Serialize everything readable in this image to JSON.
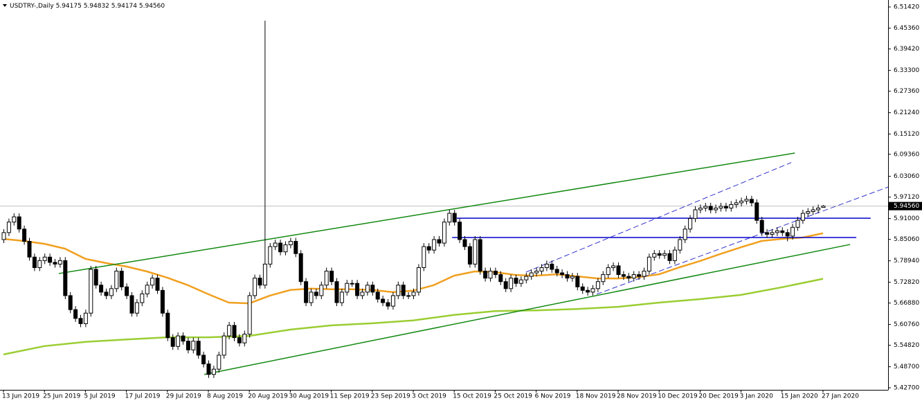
{
  "chart_data": {
    "type": "candlestick",
    "header": {
      "symbol": "USDTRY-,Daily",
      "prices": [
        "5.94175",
        "5.94832",
        "5.94174",
        "5.94560"
      ]
    },
    "ylim": [
      5.421,
      6.534
    ],
    "yticks": [
      {
        "value": 6.5142,
        "label": "6.51420"
      },
      {
        "value": 6.4536,
        "label": "6.45360"
      },
      {
        "value": 6.3942,
        "label": "6.39420"
      },
      {
        "value": 6.333,
        "label": "6.33300"
      },
      {
        "value": 6.2736,
        "label": "6.27360"
      },
      {
        "value": 6.2124,
        "label": "6.21240"
      },
      {
        "value": 6.1512,
        "label": "6.15120"
      },
      {
        "value": 6.0936,
        "label": "6.09360"
      },
      {
        "value": 6.0306,
        "label": "6.03060"
      },
      {
        "value": 5.9712,
        "label": "5.97120"
      },
      {
        "value": 5.91,
        "label": "5.91000"
      },
      {
        "value": 5.8506,
        "label": "5.85060"
      },
      {
        "value": 5.7894,
        "label": "5.78940"
      },
      {
        "value": 5.7282,
        "label": "5.72820"
      },
      {
        "value": 5.6688,
        "label": "5.66880"
      },
      {
        "value": 5.6076,
        "label": "5.60760"
      },
      {
        "value": 5.5482,
        "label": "5.54820"
      },
      {
        "value": 5.487,
        "label": "5.48700"
      },
      {
        "value": 5.427,
        "label": "5.42700"
      }
    ],
    "current_price": {
      "value": 5.9456,
      "label": "5.94560"
    },
    "bull_color": "#ffffff",
    "bear_color": "#000000",
    "outline_color": "#000000",
    "categories": [
      "13 Jun 2019",
      null,
      null,
      null,
      null,
      null,
      null,
      null,
      "25 Jun 2019",
      null,
      null,
      null,
      null,
      null,
      null,
      null,
      "5 Jul 2019",
      null,
      null,
      null,
      null,
      null,
      null,
      null,
      "17 Jul 2019",
      null,
      null,
      null,
      null,
      null,
      null,
      null,
      "29 Jul 2019",
      null,
      null,
      null,
      null,
      null,
      null,
      null,
      "8 Aug 2019",
      null,
      null,
      null,
      null,
      null,
      null,
      null,
      "20 Aug 2019",
      null,
      null,
      null,
      null,
      null,
      null,
      null,
      "30 Aug 2019",
      null,
      null,
      null,
      null,
      null,
      null,
      null,
      "11 Sep 2019",
      null,
      null,
      null,
      null,
      null,
      null,
      null,
      "23 Sep 2019",
      null,
      null,
      null,
      null,
      null,
      null,
      null,
      "3 Oct 2019",
      null,
      null,
      null,
      null,
      null,
      null,
      null,
      "15 Oct 2019",
      null,
      null,
      null,
      null,
      null,
      null,
      null,
      "25 Oct 2019",
      null,
      null,
      null,
      null,
      null,
      null,
      null,
      "6 Nov 2019",
      null,
      null,
      null,
      null,
      null,
      null,
      null,
      "18 Nov 2019",
      null,
      null,
      null,
      null,
      null,
      null,
      null,
      "28 Nov 2019",
      null,
      null,
      null,
      null,
      null,
      null,
      null,
      "10 Dec 2019",
      null,
      null,
      null,
      null,
      null,
      null,
      null,
      "20 Dec 2019",
      null,
      null,
      null,
      null,
      null,
      null,
      null,
      "3 Jan 2020",
      null,
      null,
      null,
      null,
      null,
      null,
      null,
      "15 Jan 2020",
      null,
      null,
      null,
      null,
      null,
      null,
      null,
      "27 Jan 2020"
    ],
    "candles": [
      [
        5.85,
        5.88,
        5.84,
        5.87
      ],
      [
        5.87,
        5.91,
        5.86,
        5.9
      ],
      [
        5.9,
        5.925,
        5.89,
        5.915
      ],
      [
        5.915,
        5.925,
        5.87,
        5.88
      ],
      [
        5.88,
        5.89,
        5.835,
        5.845
      ],
      [
        5.845,
        5.855,
        5.79,
        5.8
      ],
      [
        5.8,
        5.81,
        5.76,
        5.77
      ],
      [
        5.77,
        5.8,
        5.76,
        5.79
      ],
      [
        5.79,
        5.81,
        5.78,
        5.8
      ],
      [
        5.8,
        5.81,
        5.775,
        5.785
      ],
      [
        5.785,
        5.795,
        5.77,
        5.78
      ],
      [
        5.78,
        5.8,
        5.77,
        5.79
      ],
      [
        5.79,
        5.8,
        5.68,
        5.69
      ],
      [
        5.69,
        5.7,
        5.64,
        5.65
      ],
      [
        5.65,
        5.66,
        5.615,
        5.625
      ],
      [
        5.625,
        5.635,
        5.6,
        5.61
      ],
      [
        5.61,
        5.65,
        5.6,
        5.64
      ],
      [
        5.64,
        5.775,
        5.63,
        5.765
      ],
      [
        5.765,
        5.775,
        5.71,
        5.72
      ],
      [
        5.72,
        5.73,
        5.69,
        5.7
      ],
      [
        5.7,
        5.71,
        5.68,
        5.69
      ],
      [
        5.69,
        5.72,
        5.68,
        5.71
      ],
      [
        5.71,
        5.77,
        5.7,
        5.76
      ],
      [
        5.76,
        5.77,
        5.705,
        5.715
      ],
      [
        5.715,
        5.725,
        5.68,
        5.69
      ],
      [
        5.69,
        5.7,
        5.63,
        5.64
      ],
      [
        5.64,
        5.68,
        5.63,
        5.67
      ],
      [
        5.67,
        5.705,
        5.66,
        5.695
      ],
      [
        5.695,
        5.73,
        5.685,
        5.72
      ],
      [
        5.72,
        5.75,
        5.71,
        5.74
      ],
      [
        5.74,
        5.75,
        5.695,
        5.705
      ],
      [
        5.705,
        5.715,
        5.63,
        5.64
      ],
      [
        5.64,
        5.65,
        5.56,
        5.57
      ],
      [
        5.57,
        5.58,
        5.535,
        5.545
      ],
      [
        5.545,
        5.585,
        5.535,
        5.575
      ],
      [
        5.575,
        5.585,
        5.55,
        5.56
      ],
      [
        5.56,
        5.57,
        5.525,
        5.535
      ],
      [
        5.535,
        5.57,
        5.525,
        5.56
      ],
      [
        5.56,
        5.57,
        5.51,
        5.52
      ],
      [
        5.52,
        5.53,
        5.485,
        5.495
      ],
      [
        5.495,
        5.505,
        5.455,
        5.465
      ],
      [
        5.465,
        5.49,
        5.455,
        5.48
      ],
      [
        5.48,
        5.53,
        5.47,
        5.52
      ],
      [
        5.52,
        5.585,
        5.51,
        5.575
      ],
      [
        5.575,
        5.615,
        5.565,
        5.605
      ],
      [
        5.605,
        5.615,
        5.56,
        5.57
      ],
      [
        5.57,
        5.58,
        5.545,
        5.555
      ],
      [
        5.555,
        5.59,
        5.545,
        5.58
      ],
      [
        5.58,
        5.7,
        5.57,
        5.69
      ],
      [
        5.69,
        5.75,
        5.68,
        5.74
      ],
      [
        5.74,
        5.75,
        5.71,
        5.72
      ],
      [
        5.72,
        6.475,
        5.71,
        5.78
      ],
      [
        5.78,
        5.84,
        5.77,
        5.83
      ],
      [
        5.83,
        5.85,
        5.82,
        5.84
      ],
      [
        5.84,
        5.85,
        5.805,
        5.815
      ],
      [
        5.815,
        5.845,
        5.805,
        5.835
      ],
      [
        5.835,
        5.855,
        5.825,
        5.845
      ],
      [
        5.845,
        5.855,
        5.8,
        5.81
      ],
      [
        5.81,
        5.82,
        5.72,
        5.73
      ],
      [
        5.73,
        5.74,
        5.66,
        5.67
      ],
      [
        5.67,
        5.71,
        5.66,
        5.7
      ],
      [
        5.7,
        5.71,
        5.68,
        5.69
      ],
      [
        5.69,
        5.73,
        5.68,
        5.72
      ],
      [
        5.72,
        5.77,
        5.71,
        5.76
      ],
      [
        5.76,
        5.77,
        5.72,
        5.73
      ],
      [
        5.73,
        5.74,
        5.66,
        5.67
      ],
      [
        5.67,
        5.71,
        5.66,
        5.7
      ],
      [
        5.7,
        5.735,
        5.69,
        5.725
      ],
      [
        5.725,
        5.735,
        5.715,
        5.725
      ],
      [
        5.725,
        5.735,
        5.68,
        5.69
      ],
      [
        5.69,
        5.71,
        5.68,
        5.7
      ],
      [
        5.7,
        5.73,
        5.69,
        5.72
      ],
      [
        5.72,
        5.73,
        5.69,
        5.7
      ],
      [
        5.7,
        5.71,
        5.67,
        5.68
      ],
      [
        5.68,
        5.69,
        5.66,
        5.67
      ],
      [
        5.67,
        5.68,
        5.65,
        5.66
      ],
      [
        5.66,
        5.7,
        5.65,
        5.69
      ],
      [
        5.69,
        5.73,
        5.68,
        5.72
      ],
      [
        5.72,
        5.73,
        5.68,
        5.69
      ],
      [
        5.69,
        5.7,
        5.68,
        5.69
      ],
      [
        5.69,
        5.71,
        5.68,
        5.7
      ],
      [
        5.7,
        5.78,
        5.69,
        5.77
      ],
      [
        5.77,
        5.84,
        5.76,
        5.83
      ],
      [
        5.83,
        5.84,
        5.81,
        5.82
      ],
      [
        5.82,
        5.86,
        5.81,
        5.85
      ],
      [
        5.85,
        5.86,
        5.83,
        5.84
      ],
      [
        5.84,
        5.91,
        5.83,
        5.9
      ],
      [
        5.9,
        5.935,
        5.89,
        5.925
      ],
      [
        5.925,
        5.935,
        5.89,
        5.9
      ],
      [
        5.9,
        5.91,
        5.84,
        5.85
      ],
      [
        5.85,
        5.86,
        5.82,
        5.83
      ],
      [
        5.83,
        5.84,
        5.77,
        5.78
      ],
      [
        5.78,
        5.86,
        5.77,
        5.85
      ],
      [
        5.85,
        5.86,
        5.75,
        5.76
      ],
      [
        5.76,
        5.77,
        5.73,
        5.74
      ],
      [
        5.74,
        5.77,
        5.73,
        5.76
      ],
      [
        5.76,
        5.77,
        5.74,
        5.75
      ],
      [
        5.75,
        5.76,
        5.72,
        5.73
      ],
      [
        5.73,
        5.74,
        5.7,
        5.71
      ],
      [
        5.71,
        5.75,
        5.7,
        5.74
      ],
      [
        5.74,
        5.75,
        5.715,
        5.725
      ],
      [
        5.725,
        5.745,
        5.715,
        5.735
      ],
      [
        5.735,
        5.755,
        5.725,
        5.745
      ],
      [
        5.745,
        5.765,
        5.735,
        5.755
      ],
      [
        5.755,
        5.77,
        5.745,
        5.76
      ],
      [
        5.76,
        5.78,
        5.75,
        5.77
      ],
      [
        5.77,
        5.79,
        5.76,
        5.78
      ],
      [
        5.78,
        5.79,
        5.755,
        5.765
      ],
      [
        5.765,
        5.775,
        5.745,
        5.755
      ],
      [
        5.755,
        5.765,
        5.74,
        5.75
      ],
      [
        5.75,
        5.76,
        5.73,
        5.74
      ],
      [
        5.74,
        5.755,
        5.73,
        5.745
      ],
      [
        5.745,
        5.755,
        5.705,
        5.715
      ],
      [
        5.715,
        5.725,
        5.695,
        5.705
      ],
      [
        5.705,
        5.715,
        5.69,
        5.7
      ],
      [
        5.7,
        5.72,
        5.69,
        5.71
      ],
      [
        5.71,
        5.74,
        5.7,
        5.73
      ],
      [
        5.73,
        5.76,
        5.72,
        5.75
      ],
      [
        5.75,
        5.78,
        5.74,
        5.77
      ],
      [
        5.77,
        5.785,
        5.76,
        5.775
      ],
      [
        5.775,
        5.785,
        5.74,
        5.75
      ],
      [
        5.75,
        5.76,
        5.735,
        5.745
      ],
      [
        5.745,
        5.755,
        5.73,
        5.74
      ],
      [
        5.74,
        5.76,
        5.73,
        5.75
      ],
      [
        5.75,
        5.76,
        5.735,
        5.745
      ],
      [
        5.745,
        5.77,
        5.735,
        5.76
      ],
      [
        5.76,
        5.81,
        5.75,
        5.8
      ],
      [
        5.8,
        5.82,
        5.79,
        5.81
      ],
      [
        5.81,
        5.82,
        5.795,
        5.805
      ],
      [
        5.805,
        5.82,
        5.795,
        5.81
      ],
      [
        5.81,
        5.82,
        5.78,
        5.79
      ],
      [
        5.79,
        5.83,
        5.78,
        5.82
      ],
      [
        5.82,
        5.86,
        5.81,
        5.85
      ],
      [
        5.85,
        5.89,
        5.84,
        5.88
      ],
      [
        5.88,
        5.92,
        5.87,
        5.91
      ],
      [
        5.91,
        5.945,
        5.9,
        5.935
      ],
      [
        5.935,
        5.95,
        5.925,
        5.94
      ],
      [
        5.94,
        5.955,
        5.93,
        5.945
      ],
      [
        5.945,
        5.955,
        5.925,
        5.935
      ],
      [
        5.935,
        5.95,
        5.925,
        5.94
      ],
      [
        5.94,
        5.955,
        5.93,
        5.945
      ],
      [
        5.945,
        5.955,
        5.93,
        5.94
      ],
      [
        5.94,
        5.96,
        5.93,
        5.95
      ],
      [
        5.95,
        5.965,
        5.94,
        5.955
      ],
      [
        5.955,
        5.97,
        5.945,
        5.96
      ],
      [
        5.96,
        5.975,
        5.95,
        5.965
      ],
      [
        5.965,
        5.975,
        5.945,
        5.955
      ],
      [
        5.955,
        5.965,
        5.895,
        5.905
      ],
      [
        5.905,
        5.915,
        5.86,
        5.87
      ],
      [
        5.87,
        5.88,
        5.855,
        5.865
      ],
      [
        5.865,
        5.88,
        5.855,
        5.87
      ],
      [
        5.87,
        5.885,
        5.86,
        5.875
      ],
      [
        5.875,
        5.885,
        5.86,
        5.87
      ],
      [
        5.87,
        5.88,
        5.845,
        5.86
      ],
      [
        5.86,
        5.895,
        5.85,
        5.885
      ],
      [
        5.885,
        5.915,
        5.875,
        5.905
      ],
      [
        5.905,
        5.935,
        5.895,
        5.925
      ],
      [
        5.925,
        5.94,
        5.915,
        5.93
      ],
      [
        5.93,
        5.945,
        5.92,
        5.935
      ],
      [
        5.935,
        5.95,
        5.925,
        5.94
      ],
      [
        5.94175,
        5.94832,
        5.94174,
        5.9456
      ]
    ],
    "series": [
      {
        "color": "#f0a020",
        "x": [
          0,
          4,
          8,
          12,
          16,
          20,
          24,
          28,
          32,
          36,
          40,
          44,
          48,
          52,
          56,
          60,
          64,
          68,
          72,
          76,
          80,
          84,
          88,
          92,
          96,
          100,
          104,
          108,
          112,
          116,
          120,
          124,
          128,
          132,
          136,
          140,
          144,
          148,
          152,
          156,
          160
        ],
        "values": [
          5.852,
          5.846,
          5.838,
          5.824,
          5.795,
          5.783,
          5.773,
          5.759,
          5.741,
          5.72,
          5.694,
          5.67,
          5.668,
          5.69,
          5.706,
          5.71,
          5.708,
          5.708,
          5.706,
          5.7,
          5.704,
          5.72,
          5.747,
          5.759,
          5.757,
          5.749,
          5.747,
          5.751,
          5.745,
          5.739,
          5.739,
          5.743,
          5.751,
          5.771,
          5.789,
          5.809,
          5.828,
          5.846,
          5.852,
          5.856,
          5.868
        ]
      },
      {
        "color": "#9acd32",
        "x": [
          0,
          8,
          16,
          24,
          32,
          40,
          48,
          56,
          64,
          72,
          80,
          88,
          96,
          104,
          112,
          120,
          128,
          136,
          144,
          152,
          160
        ],
        "values": [
          5.522,
          5.546,
          5.558,
          5.565,
          5.571,
          5.571,
          5.575,
          5.593,
          5.605,
          5.611,
          5.619,
          5.635,
          5.646,
          5.648,
          5.652,
          5.658,
          5.67,
          5.68,
          5.692,
          5.714,
          5.738
        ]
      }
    ],
    "lines": [
      {
        "color": "#118811",
        "dashed": false,
        "x": [
          10.8,
          154.5
        ],
        "values": [
          5.753,
          6.097
        ]
      },
      {
        "color": "#118811",
        "dashed": false,
        "x": [
          39.2,
          165.3
        ],
        "values": [
          5.465,
          5.836
        ]
      },
      {
        "color": "#0000cc",
        "dashed": false,
        "x": [
          88.5,
          169.3
        ],
        "values": [
          5.911,
          5.911
        ]
      },
      {
        "color": "#0000cc",
        "dashed": false,
        "x": [
          87.6,
          166.5
        ],
        "values": [
          5.856,
          5.856
        ]
      },
      {
        "color": "#3333cc",
        "dashed": true,
        "x": [
          102,
          153.8
        ],
        "values": [
          5.757,
          6.07
        ]
      },
      {
        "color": "#3333cc",
        "dashed": true,
        "x": [
          115.8,
          172.7
        ],
        "values": [
          5.694,
          6.0
        ]
      }
    ]
  }
}
